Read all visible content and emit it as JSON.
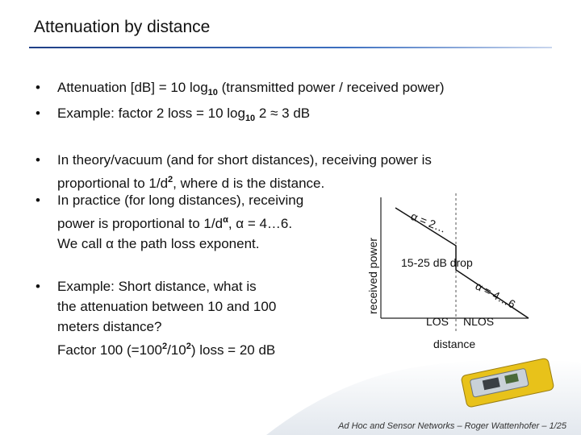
{
  "header": {
    "title": "Attenuation by distance"
  },
  "bullets": [
    {
      "lines": [
        [
          {
            "text": "Attenuation [dB] = 10 log"
          },
          {
            "text": "10",
            "format": "sub"
          },
          {
            "text": " (transmitted power / received power)"
          }
        ]
      ]
    },
    {
      "lines": [
        [
          {
            "text": "Example: factor 2 loss = 10 log"
          },
          {
            "text": "10",
            "format": "sub"
          },
          {
            "text": " 2 ≈ 3 dB"
          }
        ]
      ]
    },
    {
      "lines": [
        [
          {
            "text": "In theory/vacuum (and for short distances), receiving power is"
          }
        ],
        [
          {
            "text": "proportional to 1/d"
          },
          {
            "text": "2",
            "format": "sup"
          },
          {
            "text": ", where d is the distance."
          }
        ]
      ]
    },
    {
      "lines": [
        [
          {
            "text": "In practice (for long distances), receiving"
          }
        ],
        [
          {
            "text": "power is proportional to 1/d"
          },
          {
            "text": "α",
            "format": "sup"
          },
          {
            "text": ", α = 4…6."
          }
        ],
        [
          {
            "text": "We call α the path loss exponent."
          }
        ]
      ]
    },
    {
      "lines": [
        [
          {
            "text": "Example: Short distance, what is"
          }
        ],
        [
          {
            "text": "the attenuation between 10 and 100"
          }
        ],
        [
          {
            "text": "meters distance?"
          }
        ],
        [
          {
            "text": "Factor 100 (=100"
          },
          {
            "text": "2",
            "format": "sup"
          },
          {
            "text": "/10"
          },
          {
            "text": "2",
            "format": "sup"
          },
          {
            "text": ") loss = 20 dB"
          }
        ]
      ]
    }
  ],
  "diagram": {
    "y_label": "received power",
    "x_label": "distance",
    "alpha_near": "α = 2…",
    "drop": "15-25 dB drop",
    "alpha_far": "α = 4…6",
    "los": "LOS",
    "nlos": "NLOS"
  },
  "footer": "Ad Hoc and Sensor Networks – Roger Wattenhofer – 1/25"
}
